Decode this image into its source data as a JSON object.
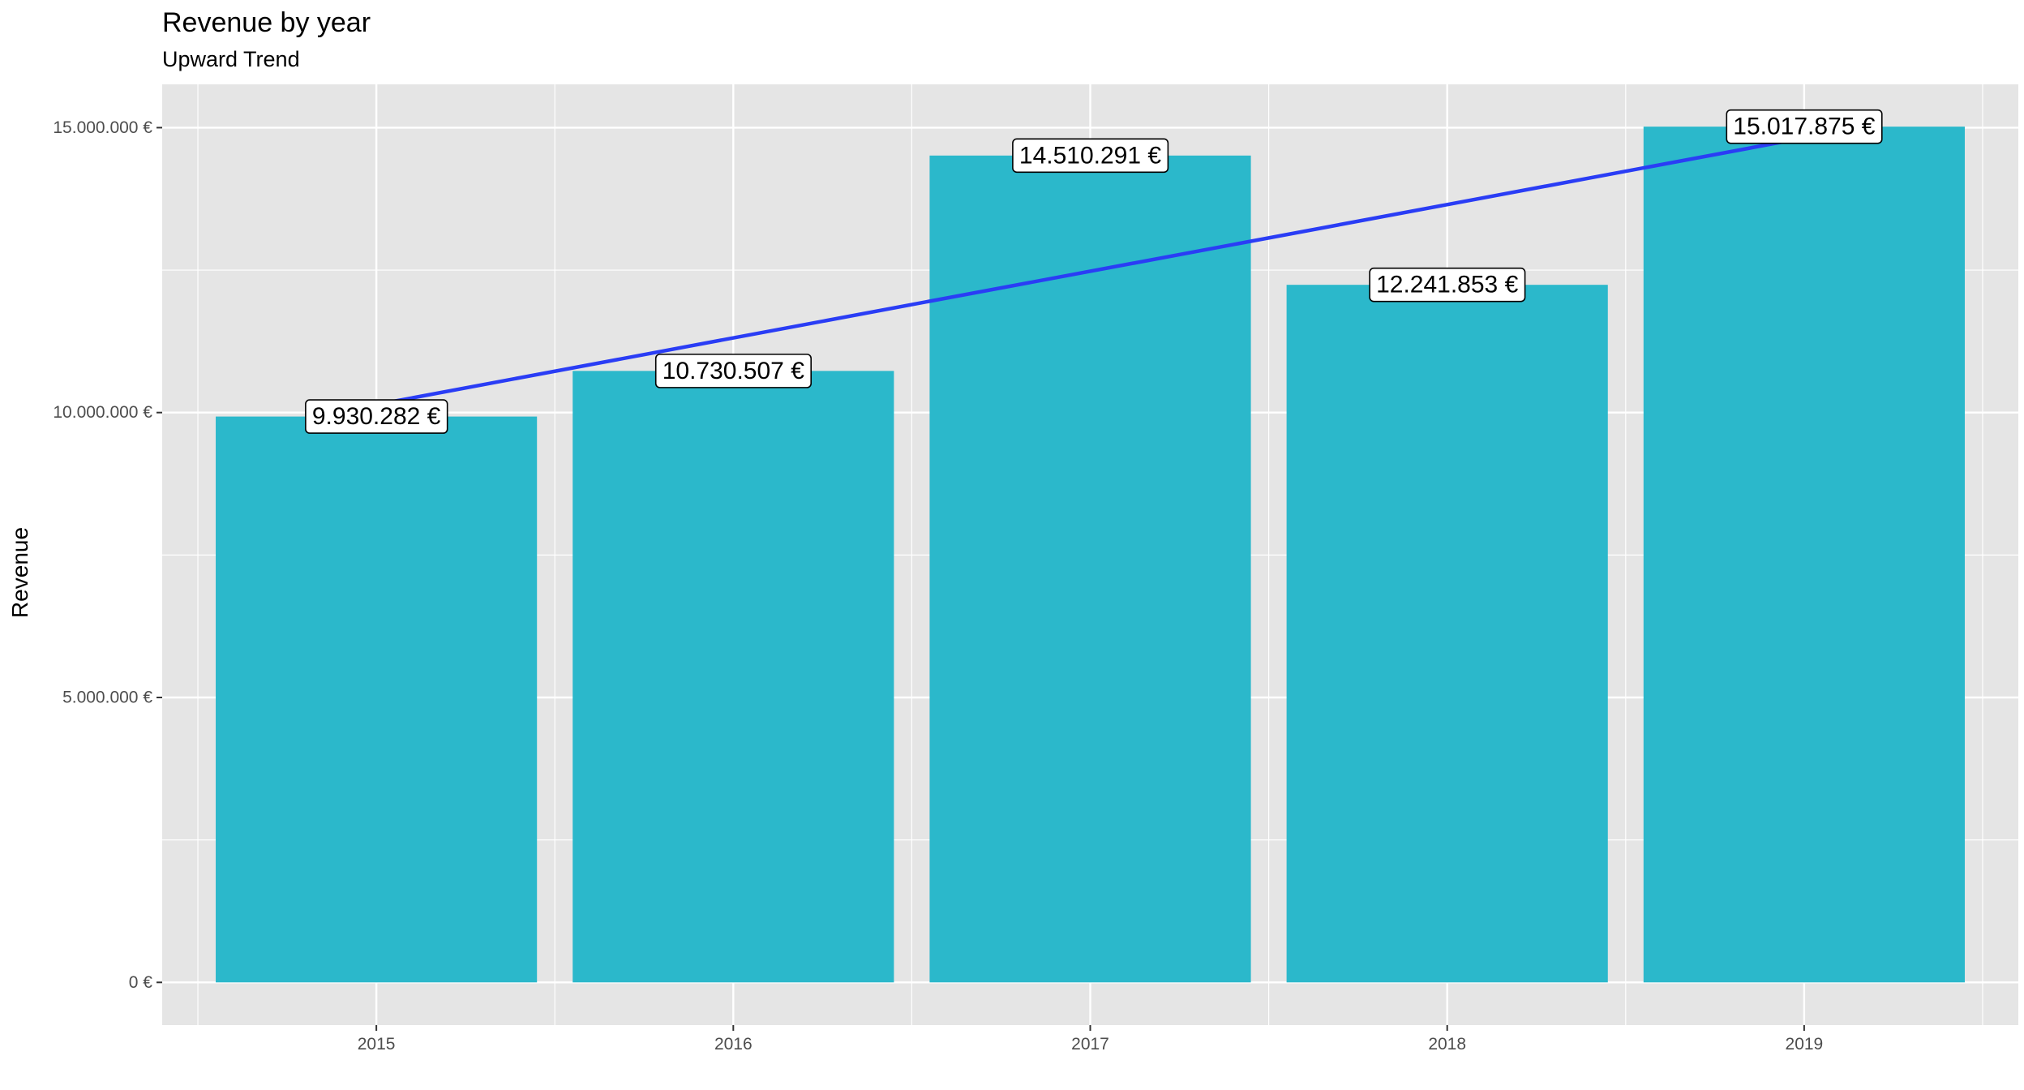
{
  "chart_data": {
    "type": "bar",
    "title": "Revenue by year",
    "subtitle": "Upward Trend",
    "xlabel": "",
    "ylabel": "Revenue",
    "categories": [
      "2015",
      "2016",
      "2017",
      "2018",
      "2019"
    ],
    "values": [
      9930282,
      10730507,
      14510291,
      12241853,
      15017875
    ],
    "data_labels": [
      "9.930.282 €",
      "10.730.507 €",
      "14.510.291 €",
      "12.241.853 €",
      "15.017.875 €"
    ],
    "ylim": [
      -750000,
      15760000
    ],
    "y_ticks": [
      0,
      5000000,
      10000000,
      15000000
    ],
    "y_tick_labels": [
      "0 €",
      "5.000.000 €",
      "10.000.000 €",
      "15.000.000 €"
    ],
    "trend_line": {
      "type": "linear",
      "from_year": "2015",
      "to_year": "2019",
      "start": 10140000,
      "end": 14820000
    },
    "grid": true,
    "legend": "none",
    "colors": {
      "bar": "#2bb8cb",
      "trend": "#2a3df5",
      "panel": "#e5e5e5",
      "grid_major": "#ffffff",
      "label_border": "#000000"
    }
  }
}
